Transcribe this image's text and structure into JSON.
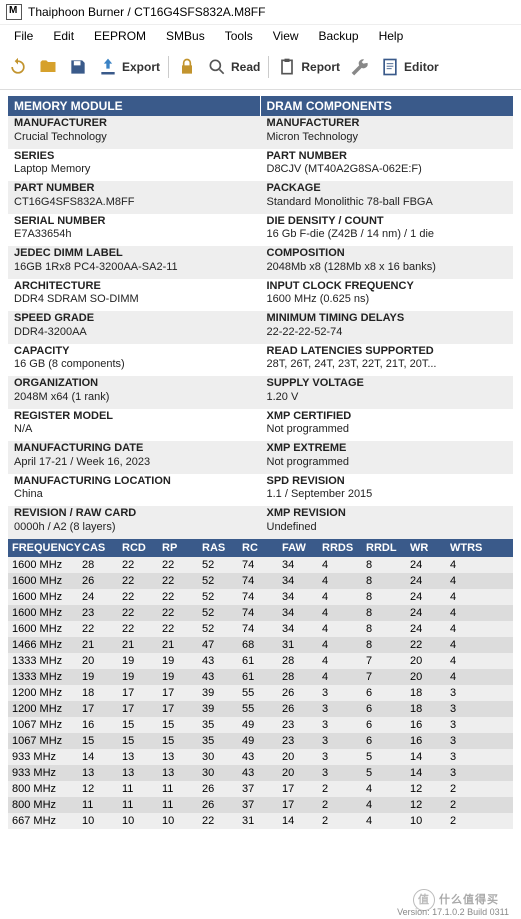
{
  "title": "Thaiphoon Burner / CT16G4SFS832A.M8FF",
  "menu": [
    "File",
    "Edit",
    "EEPROM",
    "SMBus",
    "Tools",
    "View",
    "Backup",
    "Help"
  ],
  "toolbar": {
    "export": "Export",
    "read": "Read",
    "report": "Report",
    "editor": "Editor"
  },
  "sections": {
    "left": "MEMORY MODULE",
    "right": "DRAM COMPONENTS"
  },
  "left_fields": [
    {
      "l": "MANUFACTURER",
      "v": "Crucial Technology"
    },
    {
      "l": "SERIES",
      "v": "Laptop Memory"
    },
    {
      "l": "PART NUMBER",
      "v": "CT16G4SFS832A.M8FF"
    },
    {
      "l": "SERIAL NUMBER",
      "v": "E7A33654h"
    },
    {
      "l": "JEDEC DIMM LABEL",
      "v": "16GB 1Rx8 PC4-3200AA-SA2-11"
    },
    {
      "l": "ARCHITECTURE",
      "v": "DDR4 SDRAM SO-DIMM"
    },
    {
      "l": "SPEED GRADE",
      "v": "DDR4-3200AA"
    },
    {
      "l": "CAPACITY",
      "v": "16 GB (8 components)"
    },
    {
      "l": "ORGANIZATION",
      "v": "2048M x64 (1 rank)"
    },
    {
      "l": "REGISTER MODEL",
      "v": "N/A"
    },
    {
      "l": "MANUFACTURING DATE",
      "v": "April 17-21 / Week 16, 2023"
    },
    {
      "l": "MANUFACTURING LOCATION",
      "v": "China"
    },
    {
      "l": "REVISION / RAW CARD",
      "v": "0000h / A2 (8 layers)"
    }
  ],
  "right_fields": [
    {
      "l": "MANUFACTURER",
      "v": "Micron Technology"
    },
    {
      "l": "PART NUMBER",
      "v": "D8CJV (MT40A2G8SA-062E:F)"
    },
    {
      "l": "PACKAGE",
      "v": "Standard Monolithic 78-ball FBGA"
    },
    {
      "l": "DIE DENSITY / COUNT",
      "v": "16 Gb F-die (Z42B / 14 nm) / 1 die"
    },
    {
      "l": "COMPOSITION",
      "v": "2048Mb x8 (128Mb x8 x 16 banks)"
    },
    {
      "l": "INPUT CLOCK FREQUENCY",
      "v": "1600 MHz (0.625 ns)"
    },
    {
      "l": "MINIMUM TIMING DELAYS",
      "v": "22-22-22-52-74"
    },
    {
      "l": "READ LATENCIES SUPPORTED",
      "v": "28T, 26T, 24T, 23T, 22T, 21T, 20T..."
    },
    {
      "l": "SUPPLY VOLTAGE",
      "v": "1.20 V"
    },
    {
      "l": "XMP CERTIFIED",
      "v": "Not programmed"
    },
    {
      "l": "XMP EXTREME",
      "v": "Not programmed"
    },
    {
      "l": "SPD REVISION",
      "v": "1.1 / September 2015"
    },
    {
      "l": "XMP REVISION",
      "v": "Undefined"
    }
  ],
  "grid_headers": [
    "FREQUENCY",
    "CAS",
    "RCD",
    "RP",
    "RAS",
    "RC",
    "FAW",
    "RRDS",
    "RRDL",
    "WR",
    "WTRS"
  ],
  "grid": [
    [
      "1600 MHz",
      "28",
      "22",
      "22",
      "52",
      "74",
      "34",
      "4",
      "8",
      "24",
      "4"
    ],
    [
      "1600 MHz",
      "26",
      "22",
      "22",
      "52",
      "74",
      "34",
      "4",
      "8",
      "24",
      "4"
    ],
    [
      "1600 MHz",
      "24",
      "22",
      "22",
      "52",
      "74",
      "34",
      "4",
      "8",
      "24",
      "4"
    ],
    [
      "1600 MHz",
      "23",
      "22",
      "22",
      "52",
      "74",
      "34",
      "4",
      "8",
      "24",
      "4"
    ],
    [
      "1600 MHz",
      "22",
      "22",
      "22",
      "52",
      "74",
      "34",
      "4",
      "8",
      "24",
      "4"
    ],
    [
      "1466 MHz",
      "21",
      "21",
      "21",
      "47",
      "68",
      "31",
      "4",
      "8",
      "22",
      "4"
    ],
    [
      "1333 MHz",
      "20",
      "19",
      "19",
      "43",
      "61",
      "28",
      "4",
      "7",
      "20",
      "4"
    ],
    [
      "1333 MHz",
      "19",
      "19",
      "19",
      "43",
      "61",
      "28",
      "4",
      "7",
      "20",
      "4"
    ],
    [
      "1200 MHz",
      "18",
      "17",
      "17",
      "39",
      "55",
      "26",
      "3",
      "6",
      "18",
      "3"
    ],
    [
      "1200 MHz",
      "17",
      "17",
      "17",
      "39",
      "55",
      "26",
      "3",
      "6",
      "18",
      "3"
    ],
    [
      "1067 MHz",
      "16",
      "15",
      "15",
      "35",
      "49",
      "23",
      "3",
      "6",
      "16",
      "3"
    ],
    [
      "1067 MHz",
      "15",
      "15",
      "15",
      "35",
      "49",
      "23",
      "3",
      "6",
      "16",
      "3"
    ],
    [
      "933 MHz",
      "14",
      "13",
      "13",
      "30",
      "43",
      "20",
      "3",
      "5",
      "14",
      "3"
    ],
    [
      "933 MHz",
      "13",
      "13",
      "13",
      "30",
      "43",
      "20",
      "3",
      "5",
      "14",
      "3"
    ],
    [
      "800 MHz",
      "12",
      "11",
      "11",
      "26",
      "37",
      "17",
      "2",
      "4",
      "12",
      "2"
    ],
    [
      "800 MHz",
      "11",
      "11",
      "11",
      "26",
      "37",
      "17",
      "2",
      "4",
      "12",
      "2"
    ],
    [
      "667 MHz",
      "10",
      "10",
      "10",
      "22",
      "31",
      "14",
      "2",
      "4",
      "10",
      "2"
    ]
  ],
  "footer": "Version: 17.1.0.2 Build 0311",
  "watermark": "什么值得买",
  "colors": {
    "header_bg": "#3a5a8a",
    "header_fg": "#ffffff",
    "stripe_a": "#eeeeee",
    "stripe_b": "#ffffff",
    "grid_a": "#eeeeee",
    "grid_b": "#dcdcdc"
  }
}
